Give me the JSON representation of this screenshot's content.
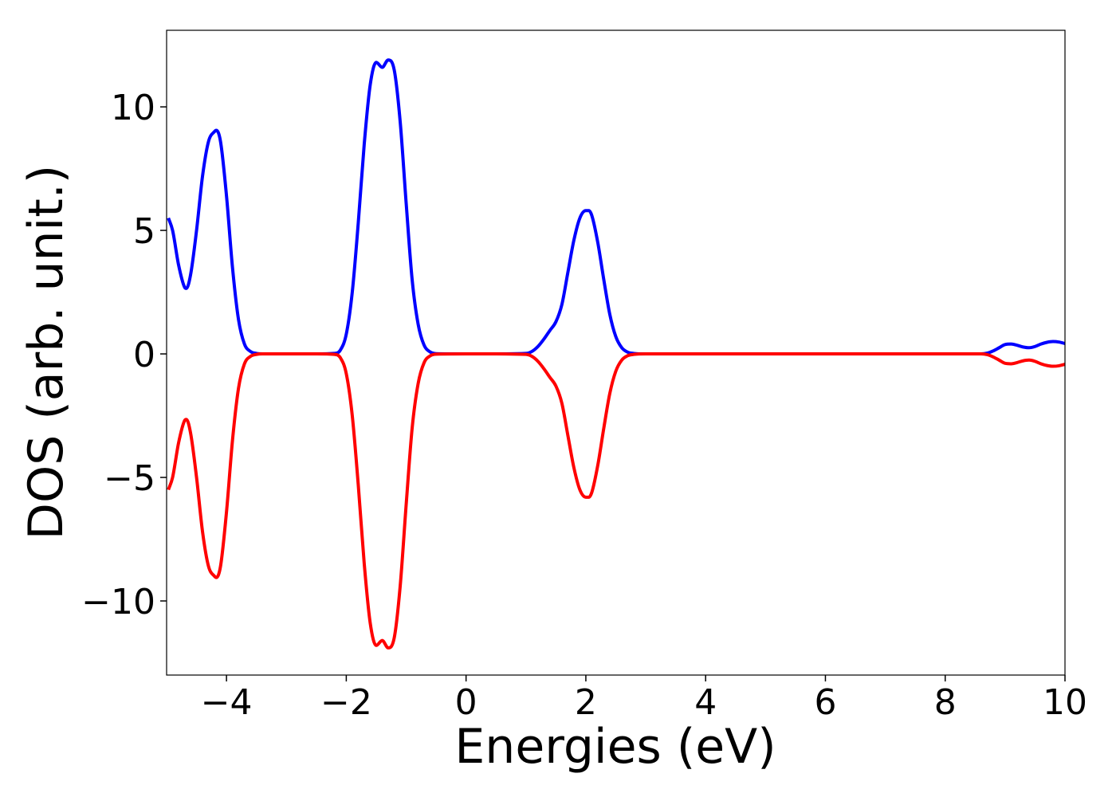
{
  "chart_data": {
    "type": "line",
    "title": "",
    "xlabel": "Energies (eV)",
    "ylabel": "DOS (arb. unit.)",
    "xlim": [
      -5,
      10
    ],
    "ylim": [
      -13,
      13.1
    ],
    "xticks": [
      -4,
      -2,
      0,
      2,
      4,
      6,
      8,
      10
    ],
    "xtick_labels": [
      "−4",
      "−2",
      "0",
      "2",
      "4",
      "6",
      "8",
      "10"
    ],
    "yticks": [
      -10,
      -5,
      0,
      5,
      10
    ],
    "ytick_labels": [
      "−10",
      "−5",
      "0",
      "5",
      "10"
    ],
    "grid": false,
    "legend": "none",
    "series": [
      {
        "color": "#0000ff",
        "x": [
          -4.97,
          -4.9,
          -4.8,
          -4.7,
          -4.67,
          -4.6,
          -4.5,
          -4.4,
          -4.3,
          -4.2,
          -4.17,
          -4.1,
          -4.0,
          -3.9,
          -3.8,
          -3.7,
          -3.6,
          -3.5,
          -3.4,
          -3.0,
          -2.5,
          -2.2,
          -2.1,
          -2.0,
          -1.9,
          -1.8,
          -1.7,
          -1.6,
          -1.5,
          -1.4,
          -1.3,
          -1.2,
          -1.1,
          -1.0,
          -0.9,
          -0.8,
          -0.7,
          -0.6,
          -0.5,
          0.0,
          0.5,
          1.0,
          1.1,
          1.2,
          1.3,
          1.4,
          1.5,
          1.6,
          1.7,
          1.8,
          1.9,
          2.0,
          2.05,
          2.1,
          2.2,
          2.3,
          2.4,
          2.5,
          2.6,
          2.7,
          2.8,
          3.0,
          4.0,
          6.0,
          8.0,
          8.6,
          8.7,
          8.8,
          8.9,
          9.0,
          9.1,
          9.2,
          9.3,
          9.4,
          9.5,
          9.6,
          9.7,
          9.8,
          9.9,
          10.0
        ],
        "y": [
          5.5,
          5.0,
          3.6,
          2.7,
          2.65,
          3.2,
          5.0,
          7.2,
          8.6,
          9.0,
          9.05,
          8.6,
          6.4,
          3.5,
          1.4,
          0.4,
          0.1,
          0.02,
          0.0,
          0.0,
          0.0,
          0.02,
          0.15,
          0.8,
          2.5,
          5.3,
          8.5,
          10.9,
          11.8,
          11.6,
          11.9,
          11.5,
          9.4,
          6.1,
          3.0,
          1.2,
          0.35,
          0.08,
          0.01,
          0.0,
          0.0,
          0.02,
          0.1,
          0.3,
          0.6,
          0.95,
          1.3,
          2.0,
          3.3,
          4.6,
          5.5,
          5.8,
          5.8,
          5.6,
          4.5,
          3.0,
          1.6,
          0.7,
          0.25,
          0.07,
          0.02,
          0.0,
          0.0,
          0.0,
          0.0,
          0.0,
          0.03,
          0.12,
          0.25,
          0.38,
          0.4,
          0.35,
          0.28,
          0.25,
          0.3,
          0.4,
          0.47,
          0.5,
          0.48,
          0.42
        ]
      },
      {
        "color": "#ff0000",
        "x": [
          -4.97,
          -4.9,
          -4.8,
          -4.7,
          -4.67,
          -4.6,
          -4.5,
          -4.4,
          -4.3,
          -4.2,
          -4.17,
          -4.1,
          -4.0,
          -3.9,
          -3.8,
          -3.7,
          -3.6,
          -3.5,
          -3.4,
          -3.0,
          -2.5,
          -2.2,
          -2.1,
          -2.0,
          -1.9,
          -1.8,
          -1.7,
          -1.6,
          -1.5,
          -1.4,
          -1.3,
          -1.2,
          -1.1,
          -1.0,
          -0.9,
          -0.8,
          -0.7,
          -0.6,
          -0.5,
          0.0,
          0.5,
          1.0,
          1.1,
          1.2,
          1.3,
          1.4,
          1.5,
          1.6,
          1.7,
          1.8,
          1.9,
          2.0,
          2.05,
          2.1,
          2.2,
          2.3,
          2.4,
          2.5,
          2.6,
          2.7,
          2.8,
          3.0,
          4.0,
          6.0,
          8.0,
          8.6,
          8.7,
          8.8,
          8.9,
          9.0,
          9.1,
          9.2,
          9.3,
          9.4,
          9.5,
          9.6,
          9.7,
          9.8,
          9.9,
          10.0
        ],
        "y": [
          -5.5,
          -5.0,
          -3.6,
          -2.7,
          -2.65,
          -3.2,
          -5.0,
          -7.2,
          -8.6,
          -9.0,
          -9.05,
          -8.6,
          -6.4,
          -3.5,
          -1.4,
          -0.4,
          -0.1,
          -0.02,
          0.0,
          0.0,
          0.0,
          -0.02,
          -0.15,
          -0.8,
          -2.5,
          -5.3,
          -8.5,
          -10.9,
          -11.8,
          -11.6,
          -11.9,
          -11.5,
          -9.4,
          -6.1,
          -3.0,
          -1.2,
          -0.35,
          -0.08,
          -0.01,
          0.0,
          0.0,
          -0.02,
          -0.1,
          -0.3,
          -0.6,
          -0.95,
          -1.3,
          -2.0,
          -3.3,
          -4.6,
          -5.5,
          -5.8,
          -5.8,
          -5.6,
          -4.5,
          -3.0,
          -1.6,
          -0.7,
          -0.25,
          -0.07,
          -0.02,
          0.0,
          0.0,
          0.0,
          0.0,
          0.0,
          -0.03,
          -0.12,
          -0.25,
          -0.38,
          -0.4,
          -0.35,
          -0.28,
          -0.25,
          -0.3,
          -0.4,
          -0.47,
          -0.5,
          -0.48,
          -0.42
        ]
      }
    ]
  }
}
